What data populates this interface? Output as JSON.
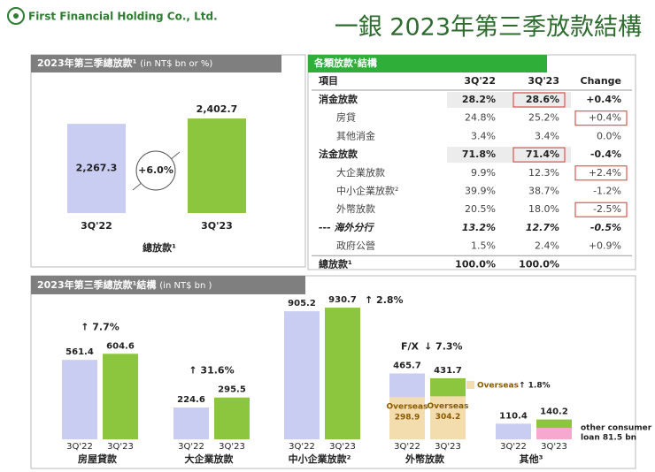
{
  "header": {
    "company": "First Financial Holding Co., Ltd.",
    "title": "一銀 2023年第三季放款結構"
  },
  "chart_data": [
    {
      "type": "bar",
      "title": "2023年第三季總放款¹",
      "subtitle": "(in NT$ bn or %)",
      "categories": [
        "3Q'22",
        "3Q'23"
      ],
      "values": [
        2267.3,
        2402.7
      ],
      "value_labels": [
        "2,267.3",
        "2,402.7"
      ],
      "label_positions": [
        "inside",
        "above"
      ],
      "colors": [
        "#c9cdf2",
        "#8cc63e"
      ],
      "growth": "+6.0%",
      "xlabel": "總放款¹"
    },
    {
      "type": "grouped-bar",
      "title": "2023年第三季總放款¹結構",
      "subtitle": "(in NT$ bn )",
      "categories": [
        "房屋貸款",
        "大企業放款",
        "中小企業放款²",
        "外幣放款",
        "其他³"
      ],
      "series": [
        {
          "name": "3Q'22",
          "color": "#c9cdf2",
          "values": [
            561.4,
            224.6,
            905.2,
            465.7,
            110.4
          ]
        },
        {
          "name": "3Q'23",
          "color": "#8cc63e",
          "values": [
            604.6,
            295.5,
            930.7,
            431.7,
            140.2
          ]
        }
      ],
      "changes": [
        "↑ 7.7%",
        "↑ 31.6%",
        "↑ 2.8%",
        "↓ 7.3%",
        null
      ],
      "fx_label": "F/X",
      "overseas": {
        "name": "Overseas",
        "category": "外幣放款",
        "color": "#f3dcae",
        "values": [
          298.9,
          304.2
        ],
        "growth": "↑ 1.8%"
      },
      "other_consumer": {
        "category": "其他³",
        "color": "#f7a8cf",
        "value": 81.5,
        "label": [
          "other consumer",
          "loan 81.5 bn"
        ]
      }
    }
  ],
  "table": {
    "title": "各類放款¹結構",
    "header": [
      "項目",
      "3Q'22",
      "3Q'23",
      "Change"
    ],
    "rows": [
      {
        "cells": [
          "消金放款",
          "28.2%",
          "28.6%",
          "+0.4%"
        ],
        "style": "bold",
        "boxed": [
          2
        ]
      },
      {
        "cells": [
          "房貸",
          "24.8%",
          "25.2%",
          "+0.4%"
        ],
        "style": "indent",
        "boxed": [
          3
        ]
      },
      {
        "cells": [
          "其他消金",
          "3.4%",
          "3.4%",
          "0.0%"
        ],
        "style": "indent",
        "boxed": []
      },
      {
        "cells": [
          "法金放款",
          "71.8%",
          "71.4%",
          "-0.4%"
        ],
        "style": "bold",
        "boxed": [
          2
        ]
      },
      {
        "cells": [
          "大企業放款",
          "9.9%",
          "12.3%",
          "+2.4%"
        ],
        "style": "indent",
        "boxed": [
          3
        ]
      },
      {
        "cells": [
          "中小企業放款²",
          "39.9%",
          "38.7%",
          "-1.2%"
        ],
        "style": "indent",
        "boxed": []
      },
      {
        "cells": [
          "外幣放款",
          "20.5%",
          "18.0%",
          "-2.5%"
        ],
        "style": "indent",
        "boxed": [
          3
        ]
      },
      {
        "cells": [
          "---  海外分行",
          "13.2%",
          "12.7%",
          "-0.5%"
        ],
        "style": "italic",
        "boxed": []
      },
      {
        "cells": [
          "政府公營",
          "1.5%",
          "2.4%",
          "+0.9%"
        ],
        "style": "indent",
        "boxed": []
      },
      {
        "cells": [
          "總放款¹",
          "100.0%",
          "100.0%"
        ],
        "style": "total",
        "boxed": []
      }
    ]
  }
}
